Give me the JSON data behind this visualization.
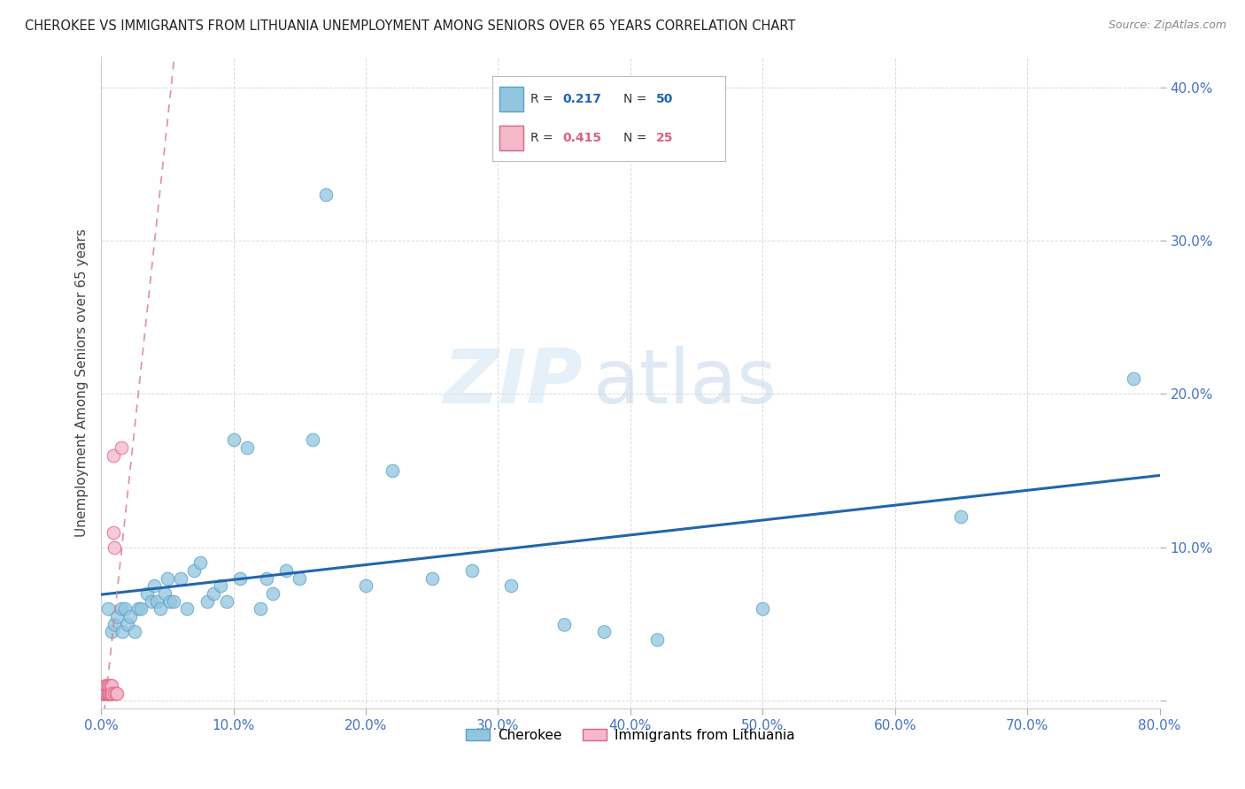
{
  "title": "CHEROKEE VS IMMIGRANTS FROM LITHUANIA UNEMPLOYMENT AMONG SENIORS OVER 65 YEARS CORRELATION CHART",
  "source": "Source: ZipAtlas.com",
  "ylabel": "Unemployment Among Seniors over 65 years",
  "xlim": [
    0.0,
    0.8
  ],
  "ylim": [
    -0.005,
    0.42
  ],
  "xticks": [
    0.0,
    0.1,
    0.2,
    0.3,
    0.4,
    0.5,
    0.6,
    0.7,
    0.8
  ],
  "yticks": [
    0.0,
    0.1,
    0.2,
    0.3,
    0.4
  ],
  "xtick_labels": [
    "0.0%",
    "",
    "",
    "",
    "",
    "",
    "",
    "",
    "80.0%"
  ],
  "ytick_labels": [
    "",
    "10.0%",
    "20.0%",
    "30.0%",
    "40.0%"
  ],
  "cherokee_color": "#92c5de",
  "cherokee_edge_color": "#5a9fc8",
  "lithuania_color": "#f4b8cb",
  "lithuania_edge_color": "#e06080",
  "trend_blue": "#2166ac",
  "trend_pink_dash": "#d48090",
  "cherokee_R": "0.217",
  "cherokee_N": "50",
  "lithuania_R": "0.415",
  "lithuania_N": "25",
  "cherokee_x": [
    0.005,
    0.008,
    0.01,
    0.012,
    0.015,
    0.016,
    0.018,
    0.02,
    0.022,
    0.025,
    0.028,
    0.03,
    0.035,
    0.038,
    0.04,
    0.042,
    0.045,
    0.048,
    0.05,
    0.052,
    0.055,
    0.06,
    0.065,
    0.07,
    0.075,
    0.08,
    0.085,
    0.09,
    0.095,
    0.1,
    0.105,
    0.11,
    0.12,
    0.125,
    0.13,
    0.14,
    0.15,
    0.16,
    0.17,
    0.2,
    0.22,
    0.25,
    0.28,
    0.31,
    0.35,
    0.38,
    0.42,
    0.5,
    0.65,
    0.78
  ],
  "cherokee_y": [
    0.06,
    0.045,
    0.05,
    0.055,
    0.06,
    0.045,
    0.06,
    0.05,
    0.055,
    0.045,
    0.06,
    0.06,
    0.07,
    0.065,
    0.075,
    0.065,
    0.06,
    0.07,
    0.08,
    0.065,
    0.065,
    0.08,
    0.06,
    0.085,
    0.09,
    0.065,
    0.07,
    0.075,
    0.065,
    0.17,
    0.08,
    0.165,
    0.06,
    0.08,
    0.07,
    0.085,
    0.08,
    0.17,
    0.33,
    0.075,
    0.15,
    0.08,
    0.085,
    0.075,
    0.05,
    0.045,
    0.04,
    0.06,
    0.12,
    0.21
  ],
  "lithuania_x": [
    0.001,
    0.002,
    0.002,
    0.003,
    0.003,
    0.004,
    0.004,
    0.005,
    0.005,
    0.005,
    0.006,
    0.006,
    0.006,
    0.007,
    0.007,
    0.007,
    0.008,
    0.008,
    0.009,
    0.009,
    0.01,
    0.01,
    0.011,
    0.012,
    0.015
  ],
  "lithuania_y": [
    0.005,
    0.005,
    0.005,
    0.01,
    0.005,
    0.005,
    0.01,
    0.005,
    0.01,
    0.005,
    0.005,
    0.005,
    0.01,
    0.005,
    0.01,
    0.005,
    0.01,
    0.005,
    0.16,
    0.11,
    0.005,
    0.1,
    0.005,
    0.005,
    0.165
  ],
  "watermark_zip": "ZIP",
  "watermark_atlas": "atlas",
  "background_color": "#ffffff",
  "grid_color": "#d0d0d0",
  "legend_R_color": "#2166ac",
  "legend_N_color": "#2166ac",
  "legend_R2_color": "#e06080",
  "legend_N2_color": "#e06080"
}
